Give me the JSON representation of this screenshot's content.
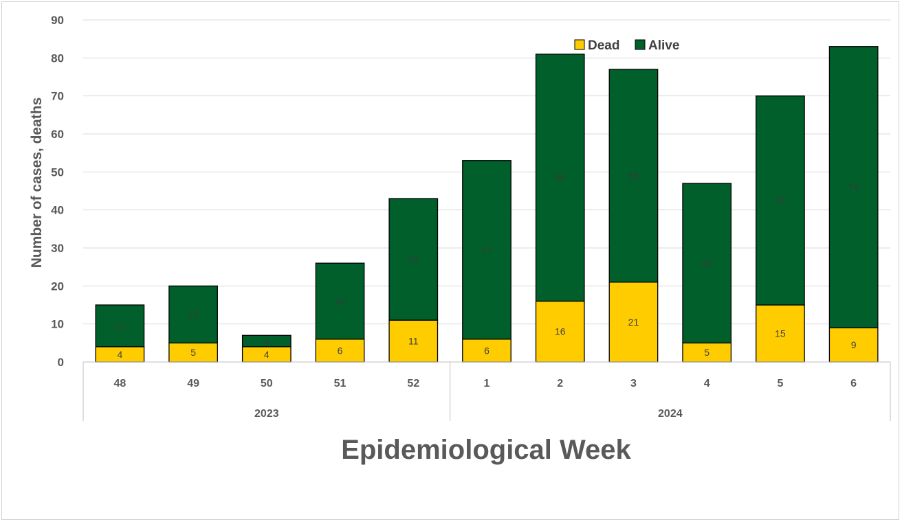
{
  "chart_data": {
    "type": "bar",
    "stacked": true,
    "title": "",
    "xlabel": "Epidemiological Week",
    "ylabel": "Number of cases, deaths",
    "ylim": [
      0,
      90
    ],
    "yticks": [
      "0",
      "10",
      "20",
      "30",
      "40",
      "50",
      "60",
      "70",
      "80",
      "90"
    ],
    "grid": true,
    "legend_position": "top",
    "categories": [
      "48",
      "49",
      "50",
      "51",
      "52",
      "1",
      "2",
      "3",
      "4",
      "5",
      "6"
    ],
    "groups": [
      {
        "label": "2023",
        "count": 5
      },
      {
        "label": "2024",
        "count": 6
      }
    ],
    "series": [
      {
        "name": "Dead",
        "color": "#FFCC00",
        "values": [
          4,
          5,
          4,
          6,
          11,
          6,
          16,
          21,
          5,
          15,
          9
        ],
        "labels": [
          "4",
          "5",
          "4",
          "6",
          "11",
          "6",
          "16",
          "21",
          "5",
          "15",
          "9"
        ]
      },
      {
        "name": "Alive",
        "color": "#005F2B",
        "values": [
          11,
          15,
          3,
          20,
          32,
          47,
          65,
          56,
          42,
          55,
          74
        ],
        "labels": [
          "11",
          "15",
          "3",
          "20",
          "32",
          "47",
          "65",
          "56",
          "42",
          "55",
          "74"
        ]
      }
    ]
  }
}
